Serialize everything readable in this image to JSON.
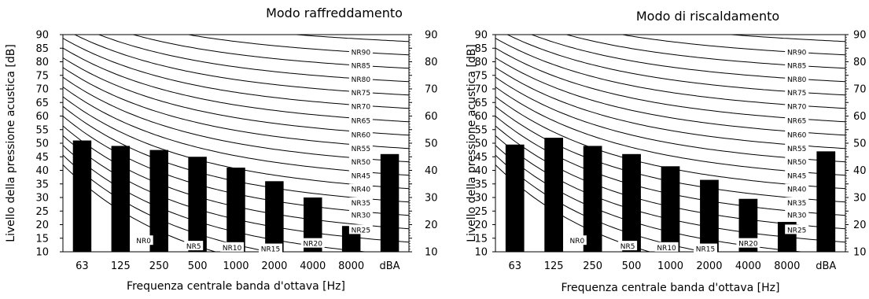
{
  "chart_data": [
    {
      "type": "bar",
      "title": "Modo raffreddamento",
      "xlabel": "Frequenza centrale banda d'ottava [Hz]",
      "ylabel": "Livello della pressione acustica [dB]",
      "ylim": [
        10,
        90
      ],
      "yticks": [
        10,
        15,
        20,
        25,
        30,
        35,
        40,
        45,
        50,
        55,
        60,
        65,
        70,
        75,
        80,
        85,
        90
      ],
      "categories": [
        "63",
        "125",
        "250",
        "500",
        "1000",
        "2000",
        "4000",
        "8000",
        "dBA"
      ],
      "values": [
        51,
        49,
        47.5,
        45,
        41,
        36,
        30,
        19.5,
        46
      ],
      "nr_curves": [
        "NR0",
        "NR5",
        "NR10",
        "NR15",
        "NR20",
        "NR25",
        "NR30",
        "NR35",
        "NR40",
        "NR45",
        "NR50",
        "NR55",
        "NR60",
        "NR65",
        "NR70",
        "NR75",
        "NR80",
        "NR85",
        "NR90"
      ]
    },
    {
      "type": "bar",
      "title": "Modo di riscaldamento",
      "xlabel": "Frequenza centrale banda d'ottava [Hz]",
      "ylabel": "Livello della pressione acustica [dB]",
      "ylim": [
        10,
        90
      ],
      "yticks": [
        10,
        15,
        20,
        25,
        30,
        35,
        40,
        45,
        50,
        55,
        60,
        65,
        70,
        75,
        80,
        85,
        90
      ],
      "categories": [
        "63",
        "125",
        "250",
        "500",
        "1000",
        "2000",
        "4000",
        "8000",
        "dBA"
      ],
      "values": [
        49.5,
        52,
        49,
        46,
        41.5,
        36.5,
        29.5,
        21,
        47
      ],
      "nr_curves": [
        "NR0",
        "NR5",
        "NR10",
        "NR15",
        "NR20",
        "NR25",
        "NR30",
        "NR35",
        "NR40",
        "NR45",
        "NR50",
        "NR55",
        "NR60",
        "NR65",
        "NR70",
        "NR75",
        "NR80",
        "NR85",
        "NR90"
      ]
    }
  ]
}
